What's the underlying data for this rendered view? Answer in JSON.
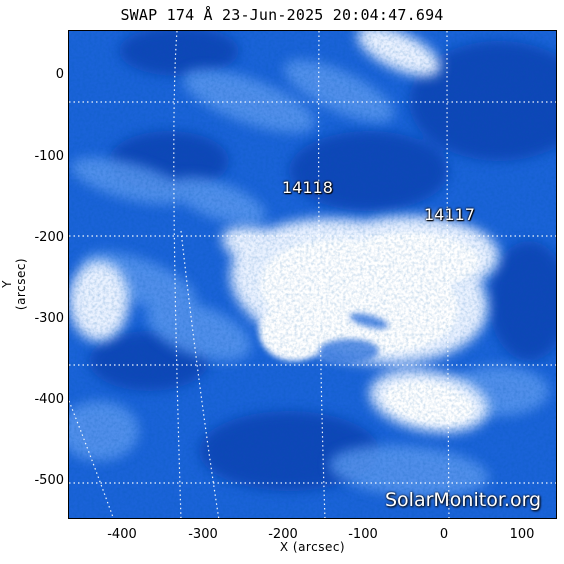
{
  "title": "SWAP 174 Å 23-Jun-2025 20:04:47.694",
  "x_axis": {
    "label": "X (arcsec)",
    "ticks": [
      "-400",
      "-300",
      "-200",
      "-100",
      "0",
      "100"
    ]
  },
  "y_axis": {
    "label": "Y (arcsec)",
    "ticks": [
      "0",
      "-100",
      "-200",
      "-300",
      "-400",
      "-500"
    ]
  },
  "active_regions": [
    {
      "id": "14118"
    },
    {
      "id": "14117"
    }
  ],
  "watermark": "SolarMonitor.org",
  "colors": {
    "background": "#ffffff",
    "image_base": "#1a63d8",
    "image_bright": "#ffffff",
    "image_dark": "#0b3ea8",
    "grid": "#ffffff"
  }
}
